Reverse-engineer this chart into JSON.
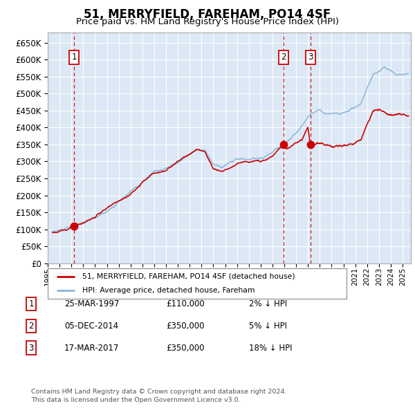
{
  "title": "51, MERRYFIELD, FAREHAM, PO14 4SF",
  "subtitle": "Price paid vs. HM Land Registry's House Price Index (HPI)",
  "ylim": [
    0,
    680000
  ],
  "yticks": [
    0,
    50000,
    100000,
    150000,
    200000,
    250000,
    300000,
    350000,
    400000,
    450000,
    500000,
    550000,
    600000,
    650000
  ],
  "hpi_color": "#8ab4d8",
  "price_color": "#cc0000",
  "background_color": "#dce8f5",
  "grid_color": "#ffffff",
  "vline_color": "#cc0000",
  "sale_years": [
    1997.23,
    2014.92,
    2017.21
  ],
  "sale_prices": [
    110000,
    350000,
    350000
  ],
  "sale_labels": [
    "1",
    "2",
    "3"
  ],
  "legend_label_price": "51, MERRYFIELD, FAREHAM, PO14 4SF (detached house)",
  "legend_label_hpi": "HPI: Average price, detached house, Fareham",
  "table_rows": [
    [
      "1",
      "25-MAR-1997",
      "£110,000",
      "2% ↓ HPI"
    ],
    [
      "2",
      "05-DEC-2014",
      "£350,000",
      "5% ↓ HPI"
    ],
    [
      "3",
      "17-MAR-2017",
      "£350,000",
      "18% ↓ HPI"
    ]
  ],
  "footer_text": "Contains HM Land Registry data © Crown copyright and database right 2024.\nThis data is licensed under the Open Government Licence v3.0.",
  "hpi_keypoints": [
    [
      1995.4,
      93000
    ],
    [
      1996,
      96000
    ],
    [
      1997,
      103000
    ],
    [
      1998,
      112000
    ],
    [
      1999,
      125000
    ],
    [
      2000,
      147000
    ],
    [
      2001,
      172000
    ],
    [
      2002,
      198000
    ],
    [
      2003,
      228000
    ],
    [
      2004,
      258000
    ],
    [
      2005,
      268000
    ],
    [
      2006,
      290000
    ],
    [
      2007.5,
      325000
    ],
    [
      2008.3,
      322000
    ],
    [
      2009.0,
      275000
    ],
    [
      2009.8,
      268000
    ],
    [
      2010.5,
      280000
    ],
    [
      2011,
      288000
    ],
    [
      2012,
      287000
    ],
    [
      2013,
      292000
    ],
    [
      2014,
      310000
    ],
    [
      2015,
      335000
    ],
    [
      2016,
      368000
    ],
    [
      2017,
      415000
    ],
    [
      2018,
      440000
    ],
    [
      2019,
      432000
    ],
    [
      2020,
      435000
    ],
    [
      2021.5,
      462000
    ],
    [
      2022.5,
      535000
    ],
    [
      2023.5,
      555000
    ],
    [
      2024.5,
      540000
    ],
    [
      2025.5,
      542000
    ]
  ],
  "price_seg1": [
    [
      1995.4,
      90000
    ],
    [
      1996,
      93000
    ],
    [
      1997.23,
      110000
    ],
    [
      1998,
      118000
    ],
    [
      1999,
      132000
    ],
    [
      2000,
      154000
    ],
    [
      2001,
      178000
    ],
    [
      2002,
      205000
    ],
    [
      2003,
      235000
    ],
    [
      2004,
      265000
    ],
    [
      2005,
      274000
    ],
    [
      2006,
      297000
    ],
    [
      2007.5,
      332000
    ],
    [
      2008.3,
      328000
    ],
    [
      2009.0,
      280000
    ],
    [
      2009.8,
      273000
    ],
    [
      2010.5,
      285000
    ],
    [
      2011,
      294000
    ],
    [
      2012,
      292000
    ],
    [
      2013,
      298000
    ],
    [
      2014.0,
      318000
    ],
    [
      2014.92,
      350000
    ]
  ],
  "price_seg2": [
    [
      2014.92,
      350000
    ],
    [
      2015.2,
      338000
    ],
    [
      2016.0,
      358000
    ],
    [
      2016.5,
      368000
    ],
    [
      2017.0,
      405000
    ],
    [
      2017.21,
      350000
    ]
  ],
  "price_seg3": [
    [
      2017.21,
      350000
    ],
    [
      2018,
      360000
    ],
    [
      2019,
      355000
    ],
    [
      2020,
      358000
    ],
    [
      2021.5,
      375000
    ],
    [
      2022,
      420000
    ],
    [
      2022.5,
      455000
    ],
    [
      2023,
      460000
    ],
    [
      2023.5,
      450000
    ],
    [
      2024,
      445000
    ],
    [
      2025.5,
      447000
    ]
  ],
  "xmin": 1995.35,
  "xmax": 2025.7
}
